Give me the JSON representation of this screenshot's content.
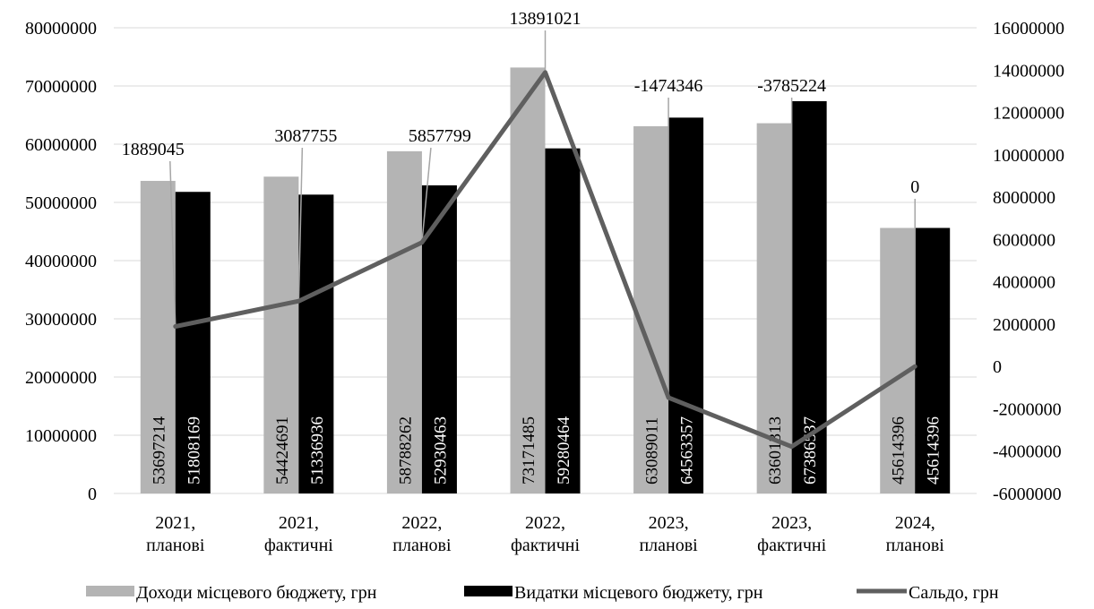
{
  "chart_data": {
    "type": "bar",
    "categories": [
      [
        "2021,",
        "планові"
      ],
      [
        "2021,",
        "фактичні"
      ],
      [
        "2022,",
        "планові"
      ],
      [
        "2022,",
        "фактичні"
      ],
      [
        "2023,",
        "планові"
      ],
      [
        "2023,",
        "фактичні"
      ],
      [
        "2024,",
        "планові"
      ]
    ],
    "series": [
      {
        "name": "Доходи місцевого бюджету, грн",
        "kind": "bar",
        "axis": "left",
        "color": "#b4b4b4",
        "values": [
          53697214,
          54424691,
          58788262,
          73171485,
          63089011,
          63601313,
          45614396
        ],
        "labels": [
          "53697214",
          "54424691",
          "58788262",
          "73171485",
          "63089011",
          "63601313",
          "45614396"
        ]
      },
      {
        "name": "Видатки  місцевого бюджету, грн",
        "kind": "bar",
        "axis": "left",
        "color": "#000000",
        "values": [
          51808169,
          51336936,
          52930463,
          59280464,
          64563357,
          67386537,
          45614396
        ],
        "labels": [
          "51808169",
          "51336936",
          "52930463",
          "59280464",
          "64563357",
          "67386537",
          "45614396"
        ]
      },
      {
        "name": "Сальдо, грн",
        "kind": "line",
        "axis": "right",
        "color": "#5f5f5f",
        "values": [
          1889045,
          3087755,
          5857799,
          13891021,
          -1474346,
          -3785224,
          0
        ],
        "labels": [
          "1889045",
          "3087755",
          "5857799",
          "13891021",
          "-1474346",
          "-3785224",
          "0"
        ]
      }
    ],
    "y_left": {
      "ylim": [
        0,
        80000000
      ],
      "ticks": [
        "0",
        "10000000",
        "20000000",
        "30000000",
        "40000000",
        "50000000",
        "60000000",
        "70000000",
        "80000000"
      ]
    },
    "y_right": {
      "ylim": [
        -6000000,
        16000000
      ],
      "ticks": [
        "-6000000",
        "-4000000",
        "-2000000",
        "0",
        "2000000",
        "4000000",
        "6000000",
        "8000000",
        "10000000",
        "12000000",
        "14000000",
        "16000000"
      ]
    },
    "grid": true,
    "legend_position": "bottom"
  }
}
